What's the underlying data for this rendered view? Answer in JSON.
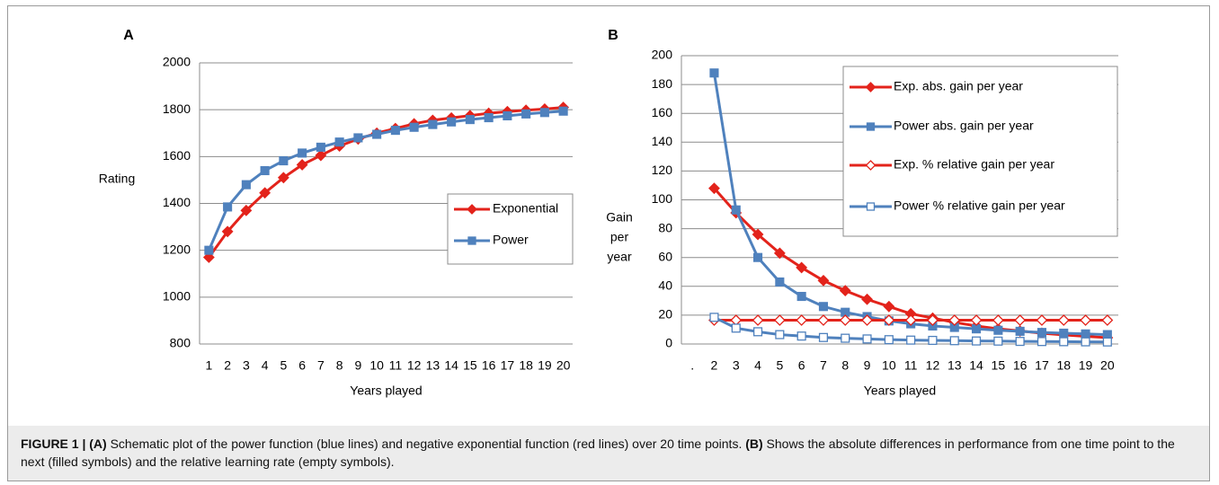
{
  "chart_data": [
    {
      "type": "line",
      "panel": "A",
      "ylabel": [
        "Rating"
      ],
      "xlabel": "Years played",
      "categories": [
        "1",
        "2",
        "3",
        "4",
        "5",
        "6",
        "7",
        "8",
        "9",
        "10",
        "11",
        "12",
        "13",
        "14",
        "15",
        "16",
        "17",
        "18",
        "19",
        "20"
      ],
      "ylim": [
        800,
        2000
      ],
      "yticks": [
        800,
        1000,
        1200,
        1400,
        1600,
        1800,
        2000
      ],
      "grid": true,
      "legend": "right",
      "series": [
        {
          "name": "Exponential",
          "color": "#e3231b",
          "marker": "diamond",
          "filled": true,
          "values": [
            1170,
            1280,
            1370,
            1445,
            1510,
            1565,
            1605,
            1645,
            1675,
            1700,
            1720,
            1740,
            1755,
            1765,
            1775,
            1785,
            1792,
            1798,
            1803,
            1810
          ]
        },
        {
          "name": "Power",
          "color": "#4f81bd",
          "marker": "square",
          "filled": true,
          "values": [
            1200,
            1385,
            1480,
            1540,
            1582,
            1615,
            1640,
            1662,
            1680,
            1695,
            1712,
            1725,
            1737,
            1748,
            1758,
            1766,
            1774,
            1782,
            1788,
            1794
          ]
        }
      ]
    },
    {
      "type": "line",
      "panel": "B",
      "ylabel": [
        "Gain",
        "per",
        "year"
      ],
      "xlabel": "Years played",
      "categories": [
        ".",
        "2",
        "3",
        "4",
        "5",
        "6",
        "7",
        "8",
        "9",
        "10",
        "11",
        "12",
        "13",
        "14",
        "15",
        "16",
        "17",
        "18",
        "19",
        "20"
      ],
      "ylim": [
        0,
        200
      ],
      "yticks": [
        0,
        20,
        40,
        60,
        80,
        100,
        120,
        140,
        160,
        180,
        200
      ],
      "grid": true,
      "legend": "upper right",
      "series": [
        {
          "name": "Exp. abs. gain per year",
          "color": "#e3231b",
          "marker": "diamond",
          "filled": true,
          "values": [
            null,
            108,
            91,
            76,
            63,
            53,
            44,
            37,
            31,
            26,
            21,
            18,
            15,
            12.5,
            10.5,
            9,
            7.5,
            6.3,
            5.3,
            4.4
          ]
        },
        {
          "name": "Power abs. gain per year",
          "color": "#4f81bd",
          "marker": "square",
          "filled": true,
          "values": [
            null,
            188,
            93,
            60,
            43,
            33,
            26,
            22,
            19,
            16,
            14,
            12.5,
            11.5,
            10.5,
            9.5,
            8.8,
            8,
            7.5,
            7,
            6.5
          ]
        },
        {
          "name": "Exp. % relative gain per year",
          "color": "#e3231b",
          "marker": "diamond",
          "filled": false,
          "values": [
            null,
            16.5,
            16.5,
            16.5,
            16.5,
            16.5,
            16.5,
            16.5,
            16.5,
            16.5,
            16.5,
            16.5,
            16.5,
            16.5,
            16.5,
            16.5,
            16.5,
            16.5,
            16.5,
            16.5
          ]
        },
        {
          "name": "Power % relative gain per year",
          "color": "#4f81bd",
          "marker": "square",
          "filled": false,
          "values": [
            null,
            18.5,
            11,
            8.5,
            6.5,
            5.5,
            4.5,
            4,
            3.5,
            3,
            2.7,
            2.5,
            2.3,
            2.1,
            2,
            1.8,
            1.7,
            1.6,
            1.5,
            1.4
          ]
        }
      ]
    }
  ],
  "caption": {
    "parts": [
      {
        "text": "FIGURE 1 | (A)",
        "bold": true
      },
      {
        "text": " Schematic plot of the power function (blue lines) and negative exponential function (red lines) over 20 time points. ",
        "bold": false
      },
      {
        "text": "(B)",
        "bold": true
      },
      {
        "text": " Shows the absolute differences in performance from one time point to the next (filled symbols) and the relative learning rate (empty symbols).",
        "bold": false
      }
    ]
  }
}
